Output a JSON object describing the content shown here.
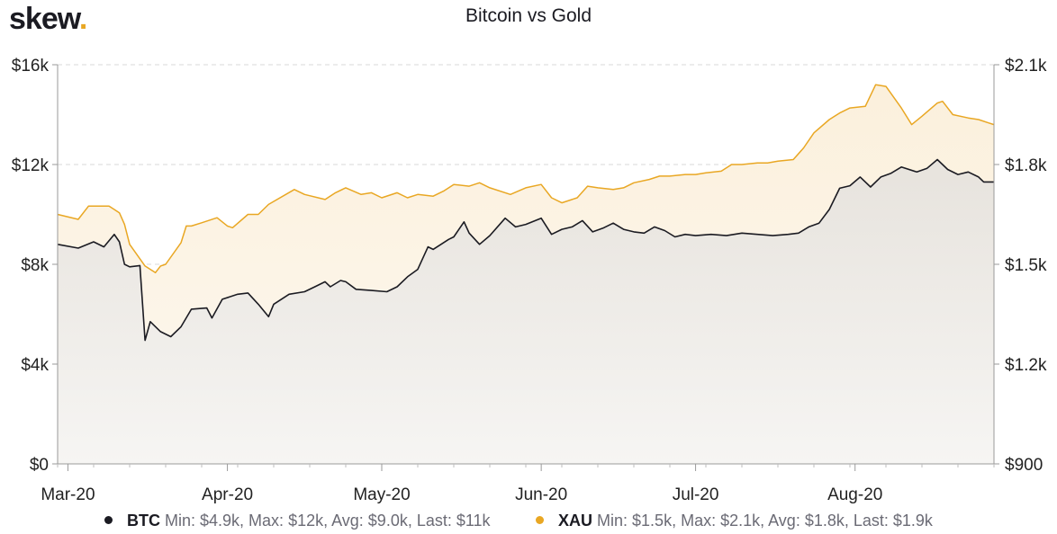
{
  "header": {
    "logo_text": "skew",
    "logo_dot": ".",
    "title": "Bitcoin vs Gold"
  },
  "legend": {
    "btc": {
      "name": "BTC",
      "stats": "Min: $4.9k, Max: $12k, Avg: $9.0k, Last: $11k",
      "color": "#1b1b22"
    },
    "xau": {
      "name": "XAU",
      "stats": "Min: $1.5k, Max: $2.1k, Avg: $1.8k, Last: $1.9k",
      "color": "#e9a723"
    }
  },
  "chart_data": {
    "type": "line",
    "title": "Bitcoin vs Gold",
    "x_tick_labels": [
      "Mar-20",
      "Apr-20",
      "May-20",
      "Jun-20",
      "Jul-20",
      "Aug-20"
    ],
    "x_tick_dates": [
      "2020-03-01",
      "2020-04-01",
      "2020-05-01",
      "2020-06-01",
      "2020-07-01",
      "2020-08-01"
    ],
    "x_range": [
      "2020-02-28",
      "2020-08-28"
    ],
    "y_left": {
      "range": [
        0,
        16000
      ],
      "ticks": [
        0,
        4000,
        8000,
        12000,
        16000
      ],
      "tick_labels": [
        "$0",
        "$4k",
        "$8k",
        "$12k",
        "$16k"
      ]
    },
    "y_right": {
      "range": [
        900,
        2100
      ],
      "ticks": [
        900,
        1200,
        1500,
        1800,
        2100
      ],
      "tick_labels": [
        "$900",
        "$1.2k",
        "$1.5k",
        "$1.8k",
        "$2.1k"
      ]
    },
    "grid": true,
    "legend_position": "bottom",
    "series": [
      {
        "name": "BTC",
        "axis": "left",
        "color": "#1b1b22",
        "points": [
          [
            "2020-02-28",
            8800
          ],
          [
            "2020-03-03",
            8650
          ],
          [
            "2020-03-06",
            8900
          ],
          [
            "2020-03-08",
            8700
          ],
          [
            "2020-03-10",
            9200
          ],
          [
            "2020-03-11",
            8900
          ],
          [
            "2020-03-12",
            8000
          ],
          [
            "2020-03-13",
            7900
          ],
          [
            "2020-03-15",
            7950
          ],
          [
            "2020-03-16",
            4950
          ],
          [
            "2020-03-17",
            5700
          ],
          [
            "2020-03-19",
            5300
          ],
          [
            "2020-03-21",
            5100
          ],
          [
            "2020-03-23",
            5500
          ],
          [
            "2020-03-25",
            6200
          ],
          [
            "2020-03-28",
            6250
          ],
          [
            "2020-03-29",
            5850
          ],
          [
            "2020-03-31",
            6600
          ],
          [
            "2020-04-03",
            6800
          ],
          [
            "2020-04-05",
            6850
          ],
          [
            "2020-04-07",
            6400
          ],
          [
            "2020-04-09",
            5900
          ],
          [
            "2020-04-10",
            6400
          ],
          [
            "2020-04-13",
            6800
          ],
          [
            "2020-04-16",
            6900
          ],
          [
            "2020-04-18",
            7100
          ],
          [
            "2020-04-20",
            7300
          ],
          [
            "2020-04-21",
            7100
          ],
          [
            "2020-04-23",
            7350
          ],
          [
            "2020-04-24",
            7300
          ],
          [
            "2020-04-26",
            7000
          ],
          [
            "2020-04-29",
            6950
          ],
          [
            "2020-05-02",
            6900
          ],
          [
            "2020-05-04",
            7100
          ],
          [
            "2020-05-06",
            7500
          ],
          [
            "2020-05-08",
            7800
          ],
          [
            "2020-05-10",
            8700
          ],
          [
            "2020-05-11",
            8600
          ],
          [
            "2020-05-14",
            9000
          ],
          [
            "2020-05-15",
            9100
          ],
          [
            "2020-05-17",
            9700
          ],
          [
            "2020-05-18",
            9250
          ],
          [
            "2020-05-20",
            8800
          ],
          [
            "2020-05-22",
            9150
          ],
          [
            "2020-05-25",
            9850
          ],
          [
            "2020-05-27",
            9500
          ],
          [
            "2020-05-29",
            9600
          ],
          [
            "2020-06-01",
            9850
          ],
          [
            "2020-06-03",
            9200
          ],
          [
            "2020-06-05",
            9400
          ],
          [
            "2020-06-07",
            9500
          ],
          [
            "2020-06-09",
            9750
          ],
          [
            "2020-06-11",
            9300
          ],
          [
            "2020-06-13",
            9450
          ],
          [
            "2020-06-15",
            9650
          ],
          [
            "2020-06-17",
            9400
          ],
          [
            "2020-06-19",
            9300
          ],
          [
            "2020-06-21",
            9250
          ],
          [
            "2020-06-23",
            9500
          ],
          [
            "2020-06-25",
            9350
          ],
          [
            "2020-06-27",
            9100
          ],
          [
            "2020-06-29",
            9200
          ],
          [
            "2020-07-01",
            9150
          ],
          [
            "2020-07-04",
            9200
          ],
          [
            "2020-07-07",
            9150
          ],
          [
            "2020-07-10",
            9250
          ],
          [
            "2020-07-13",
            9200
          ],
          [
            "2020-07-16",
            9150
          ],
          [
            "2020-07-19",
            9200
          ],
          [
            "2020-07-21",
            9250
          ],
          [
            "2020-07-23",
            9500
          ],
          [
            "2020-07-25",
            9650
          ],
          [
            "2020-07-27",
            10200
          ],
          [
            "2020-07-29",
            11050
          ],
          [
            "2020-07-31",
            11150
          ],
          [
            "2020-08-02",
            11500
          ],
          [
            "2020-08-04",
            11100
          ],
          [
            "2020-08-06",
            11500
          ],
          [
            "2020-08-08",
            11650
          ],
          [
            "2020-08-10",
            11900
          ],
          [
            "2020-08-13",
            11700
          ],
          [
            "2020-08-15",
            11850
          ],
          [
            "2020-08-17",
            12200
          ],
          [
            "2020-08-19",
            11800
          ],
          [
            "2020-08-21",
            11600
          ],
          [
            "2020-08-23",
            11700
          ],
          [
            "2020-08-25",
            11500
          ],
          [
            "2020-08-26",
            11300
          ],
          [
            "2020-08-28",
            11300
          ]
        ]
      },
      {
        "name": "XAU",
        "axis": "right",
        "color": "#e9a723",
        "points": [
          [
            "2020-02-28",
            1650
          ],
          [
            "2020-03-03",
            1635
          ],
          [
            "2020-03-05",
            1675
          ],
          [
            "2020-03-06",
            1675
          ],
          [
            "2020-03-09",
            1675
          ],
          [
            "2020-03-10",
            1665
          ],
          [
            "2020-03-11",
            1655
          ],
          [
            "2020-03-12",
            1620
          ],
          [
            "2020-03-13",
            1560
          ],
          [
            "2020-03-16",
            1495
          ],
          [
            "2020-03-18",
            1475
          ],
          [
            "2020-03-19",
            1495
          ],
          [
            "2020-03-20",
            1500
          ],
          [
            "2020-03-23",
            1565
          ],
          [
            "2020-03-24",
            1615
          ],
          [
            "2020-03-25",
            1615
          ],
          [
            "2020-03-27",
            1625
          ],
          [
            "2020-03-30",
            1640
          ],
          [
            "2020-04-01",
            1615
          ],
          [
            "2020-04-02",
            1610
          ],
          [
            "2020-04-05",
            1650
          ],
          [
            "2020-04-07",
            1650
          ],
          [
            "2020-04-09",
            1680
          ],
          [
            "2020-04-14",
            1725
          ],
          [
            "2020-04-16",
            1710
          ],
          [
            "2020-04-20",
            1695
          ],
          [
            "2020-04-22",
            1715
          ],
          [
            "2020-04-24",
            1730
          ],
          [
            "2020-04-27",
            1710
          ],
          [
            "2020-04-29",
            1715
          ],
          [
            "2020-05-01",
            1700
          ],
          [
            "2020-05-04",
            1715
          ],
          [
            "2020-05-06",
            1700
          ],
          [
            "2020-05-08",
            1710
          ],
          [
            "2020-05-11",
            1705
          ],
          [
            "2020-05-13",
            1720
          ],
          [
            "2020-05-15",
            1740
          ],
          [
            "2020-05-18",
            1735
          ],
          [
            "2020-05-20",
            1745
          ],
          [
            "2020-05-22",
            1730
          ],
          [
            "2020-05-26",
            1710
          ],
          [
            "2020-05-29",
            1730
          ],
          [
            "2020-06-01",
            1740
          ],
          [
            "2020-06-03",
            1700
          ],
          [
            "2020-06-05",
            1685
          ],
          [
            "2020-06-08",
            1700
          ],
          [
            "2020-06-10",
            1735
          ],
          [
            "2020-06-12",
            1730
          ],
          [
            "2020-06-15",
            1725
          ],
          [
            "2020-06-17",
            1730
          ],
          [
            "2020-06-19",
            1745
          ],
          [
            "2020-06-22",
            1755
          ],
          [
            "2020-06-24",
            1765
          ],
          [
            "2020-06-26",
            1765
          ],
          [
            "2020-06-29",
            1770
          ],
          [
            "2020-07-01",
            1770
          ],
          [
            "2020-07-03",
            1775
          ],
          [
            "2020-07-06",
            1780
          ],
          [
            "2020-07-08",
            1800
          ],
          [
            "2020-07-10",
            1800
          ],
          [
            "2020-07-13",
            1805
          ],
          [
            "2020-07-15",
            1805
          ],
          [
            "2020-07-17",
            1810
          ],
          [
            "2020-07-20",
            1815
          ],
          [
            "2020-07-22",
            1850
          ],
          [
            "2020-07-24",
            1895
          ],
          [
            "2020-07-27",
            1935
          ],
          [
            "2020-07-29",
            1955
          ],
          [
            "2020-07-31",
            1970
          ],
          [
            "2020-08-03",
            1975
          ],
          [
            "2020-08-05",
            2040
          ],
          [
            "2020-08-07",
            2035
          ],
          [
            "2020-08-10",
            1970
          ],
          [
            "2020-08-12",
            1920
          ],
          [
            "2020-08-14",
            1945
          ],
          [
            "2020-08-17",
            1985
          ],
          [
            "2020-08-18",
            1990
          ],
          [
            "2020-08-20",
            1950
          ],
          [
            "2020-08-23",
            1940
          ],
          [
            "2020-08-25",
            1935
          ],
          [
            "2020-08-27",
            1925
          ],
          [
            "2020-08-28",
            1920
          ]
        ]
      }
    ]
  }
}
